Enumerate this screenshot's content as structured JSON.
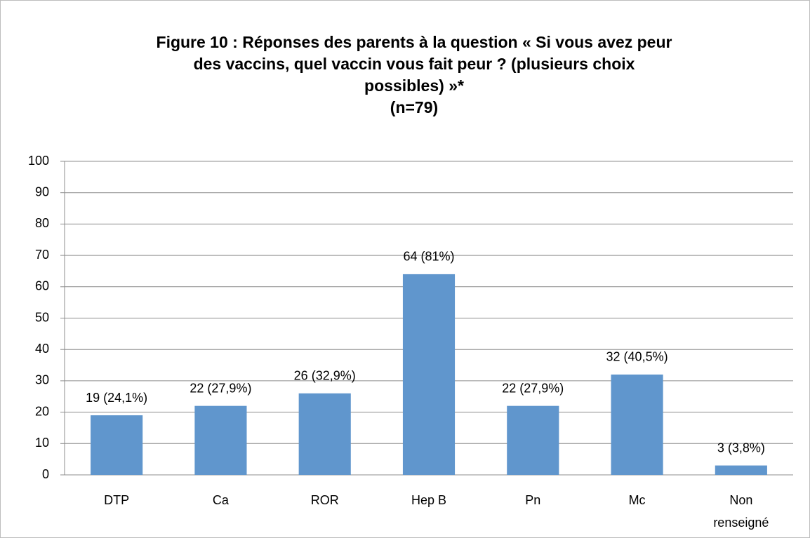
{
  "chart_data": {
    "type": "bar",
    "title": [
      "Figure 10 : Réponses des parents à la question « Si vous avez peur",
      "des vaccins, quel vaccin vous fait peur ? (plusieurs choix",
      "possibles) »*",
      "(n=79)"
    ],
    "categories": [
      "DTP",
      "Ca",
      "ROR",
      "Hep B",
      "Pn",
      "Mc",
      "Non renseigné"
    ],
    "values": [
      19,
      22,
      26,
      64,
      22,
      32,
      3
    ],
    "value_labels": [
      "19 (24,1%)",
      "22 (27,9%)",
      "26 (32,9%)",
      "64 (81%)",
      "22 (27,9%)",
      "32 (40,5%)",
      "3 (3,8%)"
    ],
    "color": "#6096cd",
    "ylim": [
      0,
      100
    ],
    "yticks": [
      0,
      10,
      20,
      30,
      40,
      50,
      60,
      70,
      80,
      90,
      100
    ],
    "grid": true
  }
}
